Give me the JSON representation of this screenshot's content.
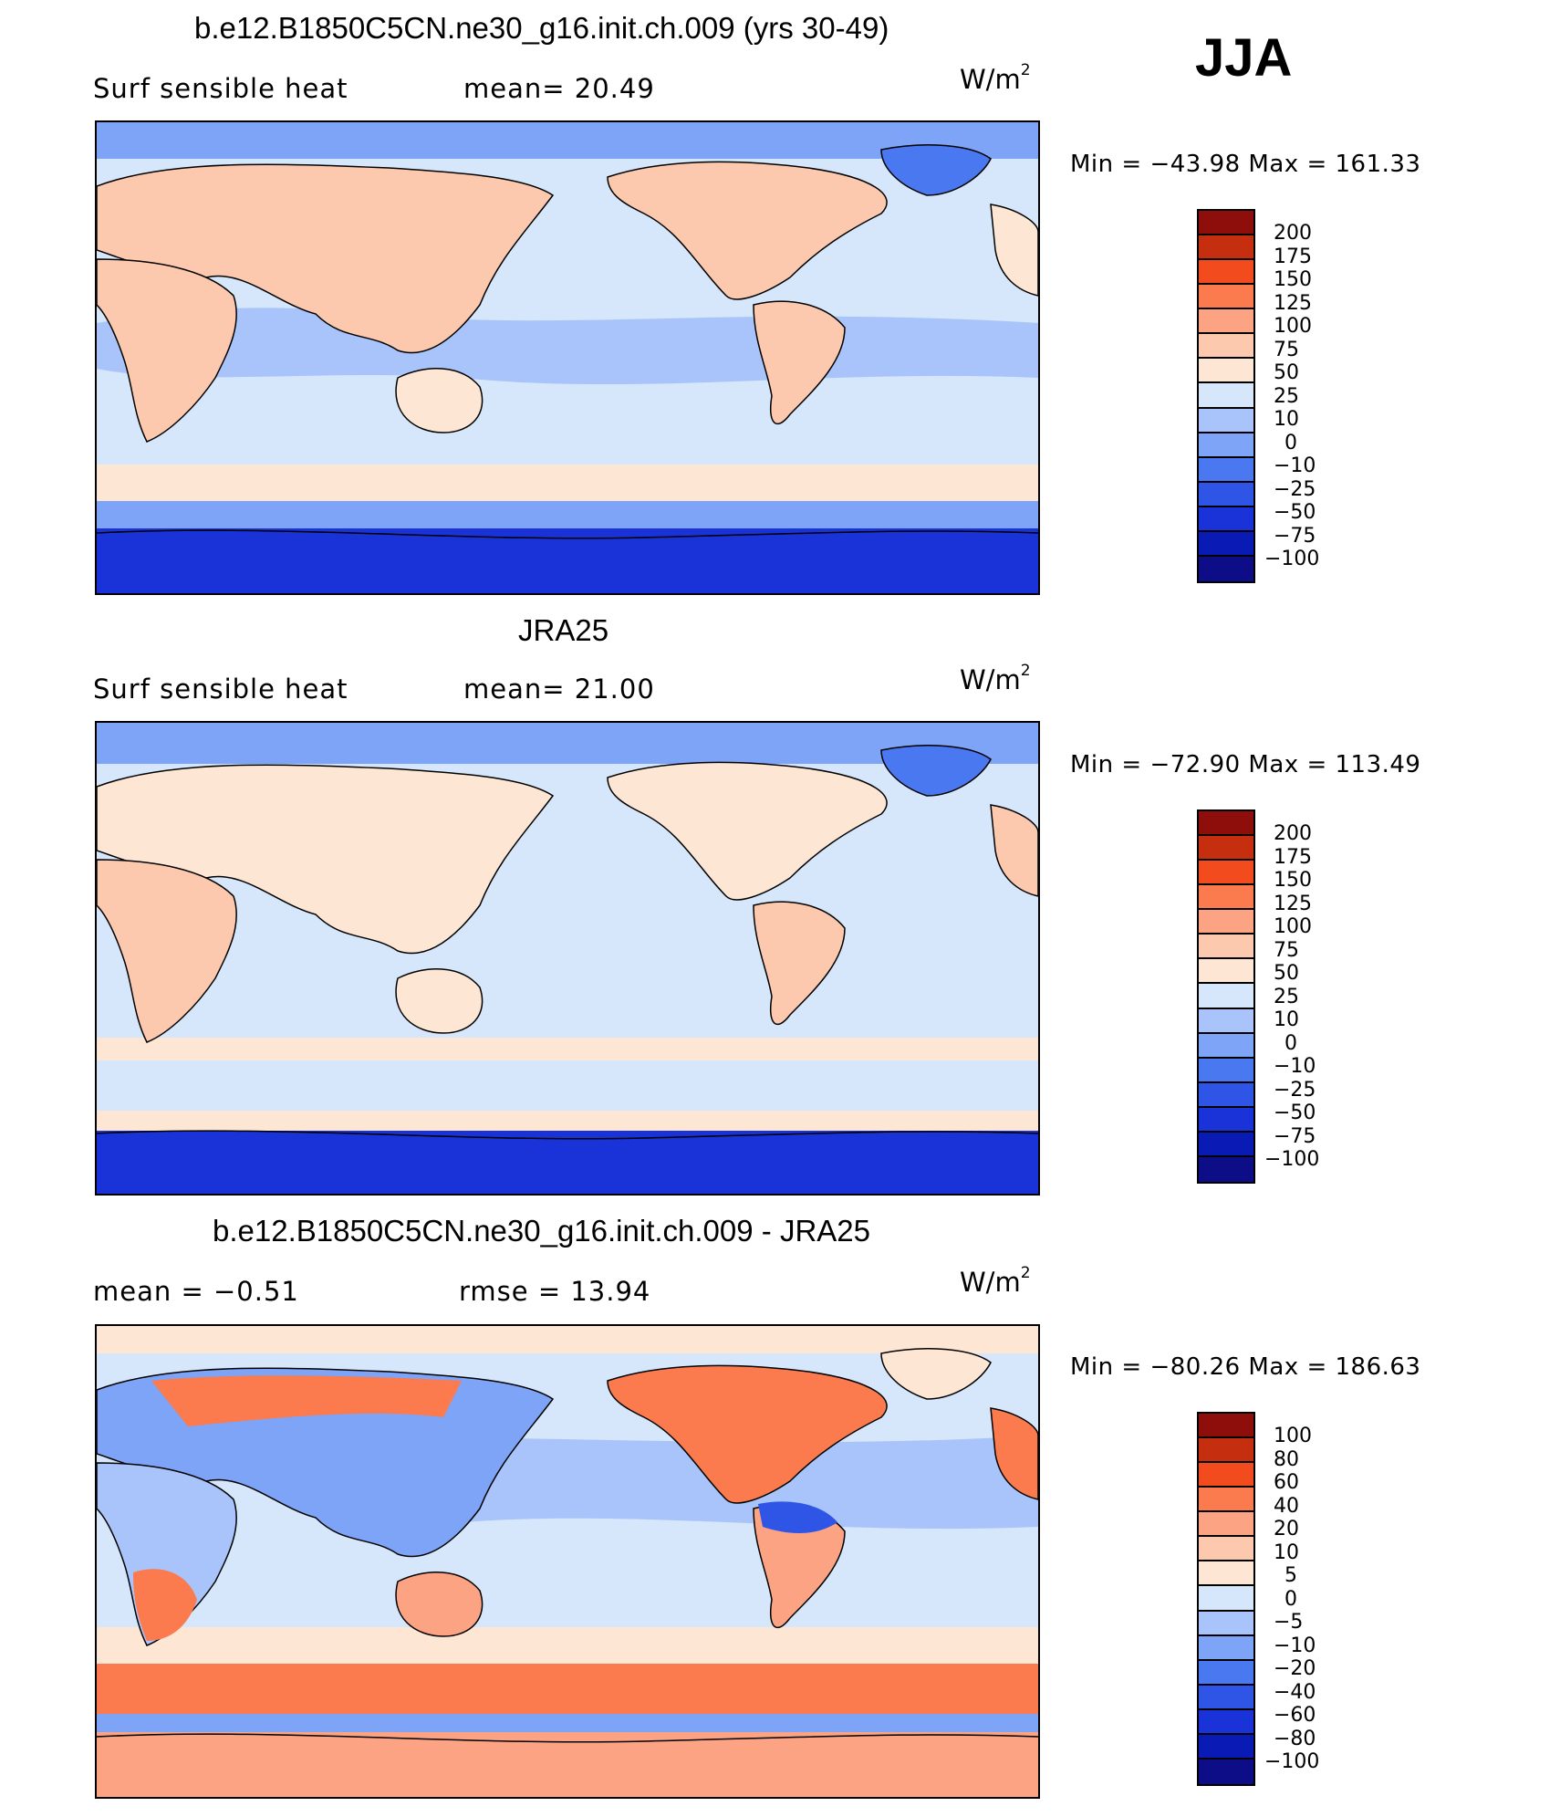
{
  "season": "JJA",
  "colors": {
    "scale": [
      "#0d0d87",
      "#0a1ab5",
      "#1a33d9",
      "#2e55e6",
      "#4a78f0",
      "#7ea4f7",
      "#a8c4fa",
      "#d6e6fb",
      "#fde6d4",
      "#fcc8ae",
      "#fba383",
      "#fb7a4e",
      "#f24b1d",
      "#c52e0e",
      "#8d0e0a"
    ]
  },
  "panels": [
    {
      "title": "b.e12.B1850C5CN.ne30_g16.init.ch.009 (yrs 30-49)",
      "left_label": "Surf  sensible  heat",
      "center_label": "mean=   20.49",
      "unit_base": "W/m",
      "unit_sup": "2",
      "minmax": "Min  =  −43.98  Max  =  161.33",
      "colorbar_labels": [
        "200",
        "175",
        "150",
        "125",
        "100",
        "75",
        "50",
        "25",
        "10",
        "0",
        "−10",
        "−25",
        "−50",
        "−75",
        "−100"
      ]
    },
    {
      "title": "JRA25",
      "left_label": "Surf  sensible  heat",
      "center_label": "mean=   21.00",
      "unit_base": "W/m",
      "unit_sup": "2",
      "minmax": "Min  =  −72.90  Max  =  113.49",
      "colorbar_labels": [
        "200",
        "175",
        "150",
        "125",
        "100",
        "75",
        "50",
        "25",
        "10",
        "0",
        "−10",
        "−25",
        "−50",
        "−75",
        "−100"
      ]
    },
    {
      "title": "b.e12.B1850C5CN.ne30_g16.init.ch.009 - JRA25",
      "left_label": "mean  =    −0.51",
      "center_label": "rmse  =    13.94",
      "unit_base": "W/m",
      "unit_sup": "2",
      "minmax": "Min  =  −80.26  Max  =  186.63",
      "colorbar_labels": [
        "100",
        "80",
        "60",
        "40",
        "20",
        "10",
        "5",
        "0",
        "−5",
        "−10",
        "−20",
        "−40",
        "−60",
        "−80",
        "−100"
      ]
    }
  ]
}
